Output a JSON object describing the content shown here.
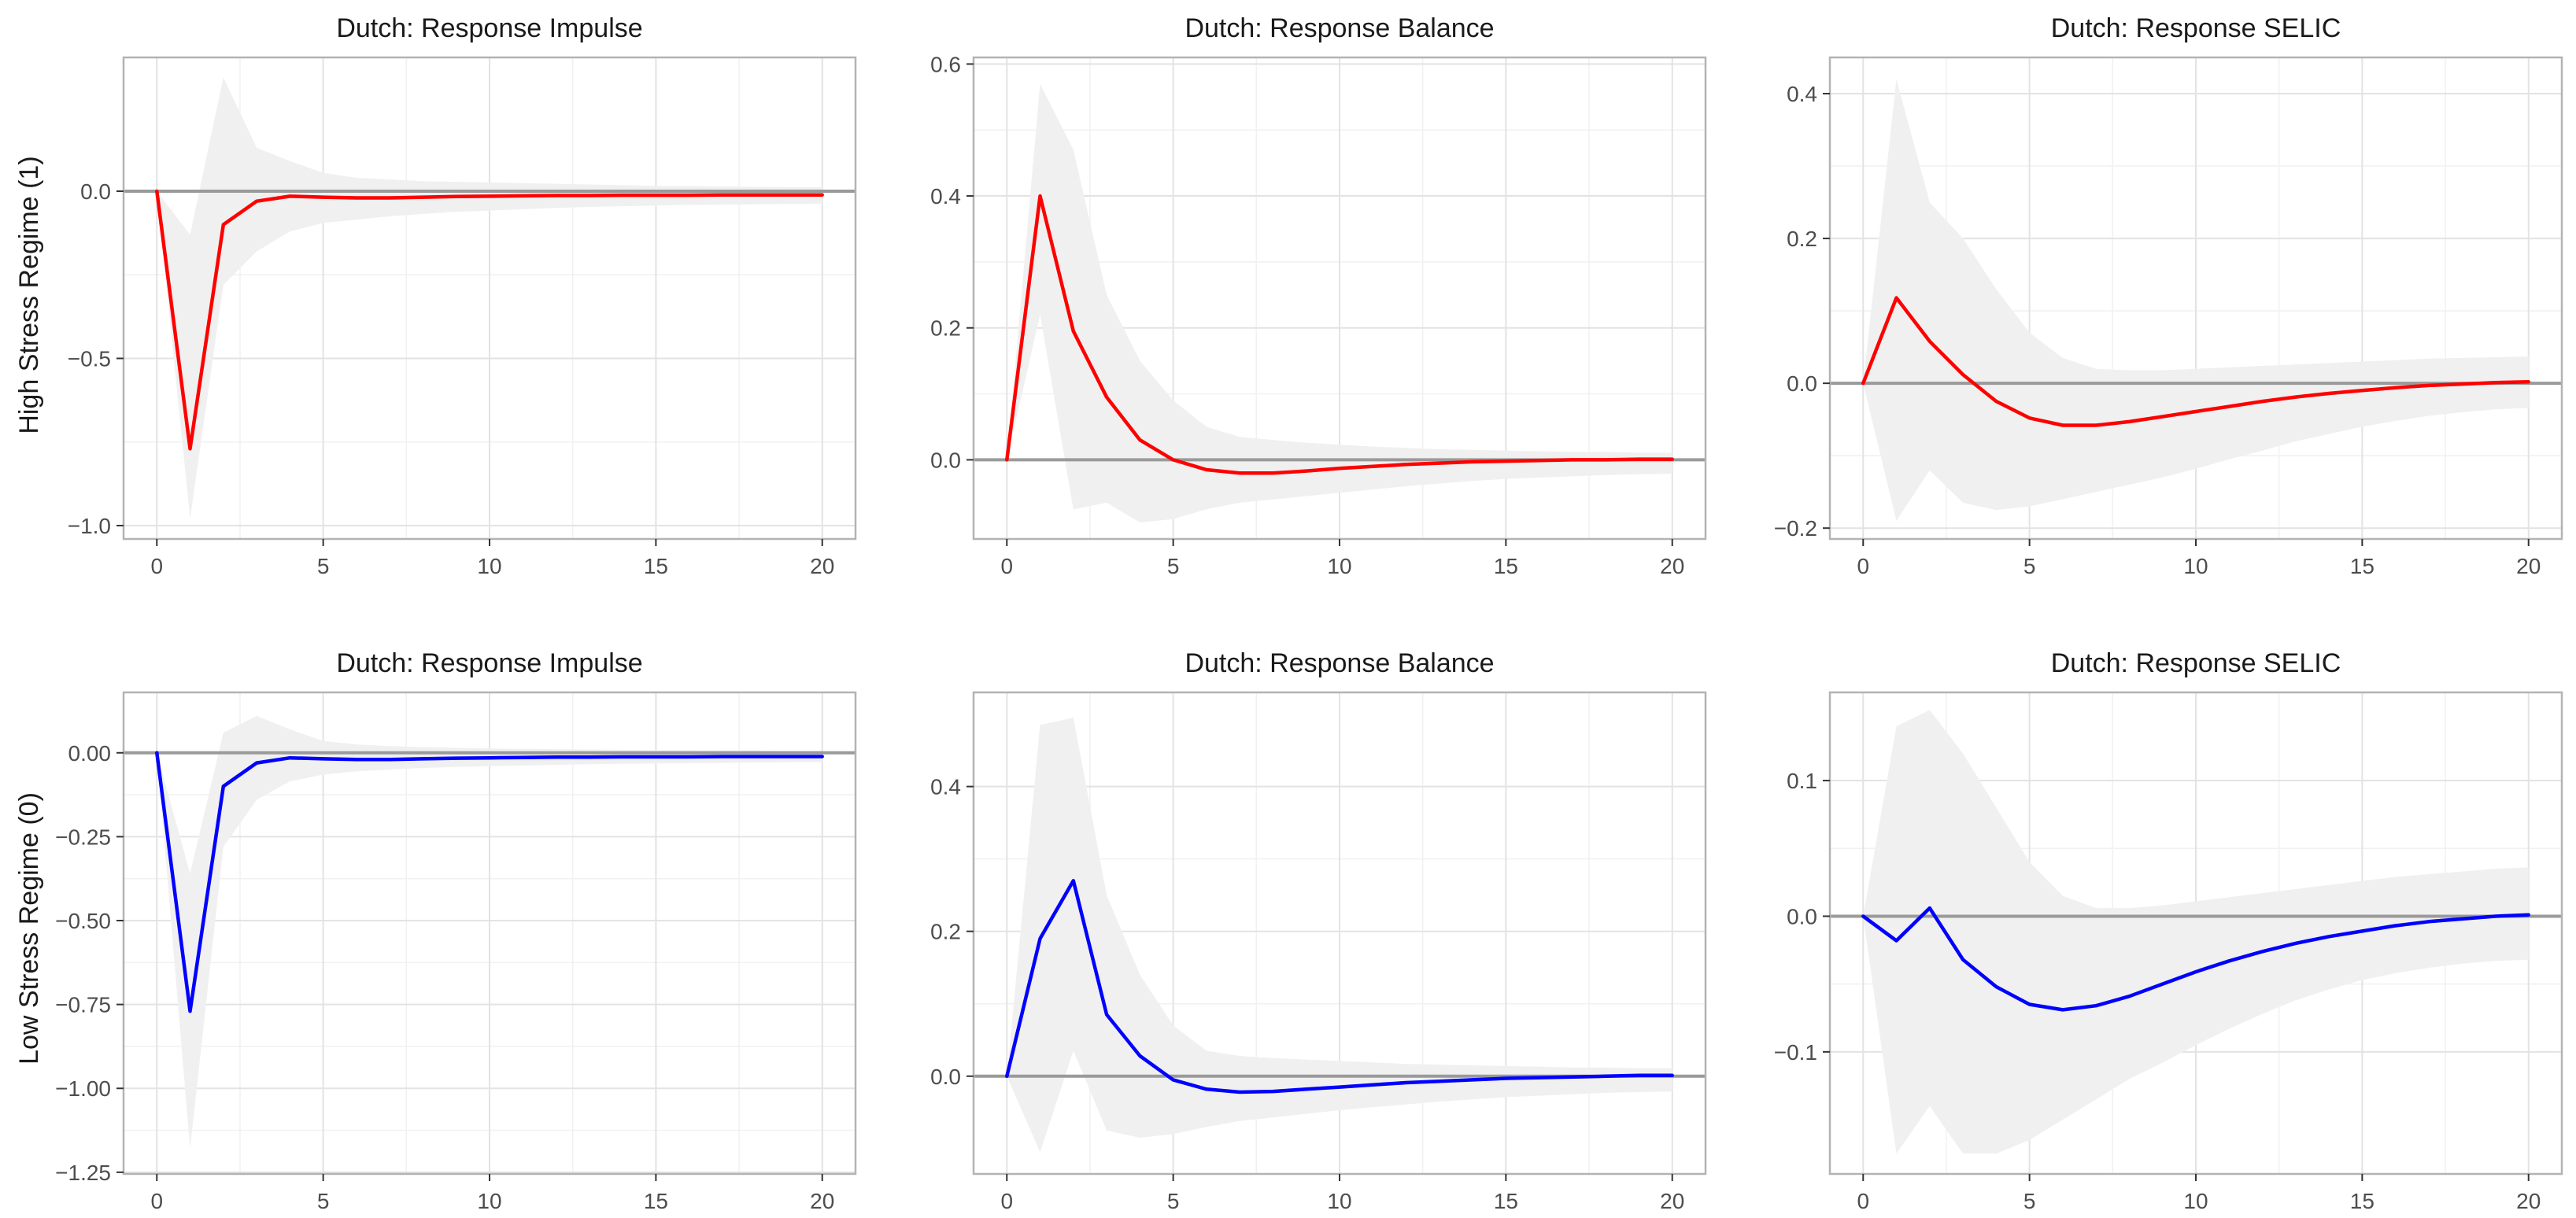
{
  "figure": {
    "row_labels": [
      "High Stress Regime (1)",
      "Low Stress Regime (0)"
    ]
  },
  "colors": {
    "high_line": "#ff0000",
    "low_line": "#0000ff",
    "band": "#f0f0f0",
    "zero_line": "#9a9a9a",
    "grid": "#e3e3e3",
    "frame": "#b3b3b3"
  },
  "chart_data": [
    {
      "type": "line",
      "title": "Dutch: Response Impulse",
      "regime": "High Stress Regime (1)",
      "xlim": [
        -1,
        21
      ],
      "ylim": [
        -1.04,
        0.4
      ],
      "xticks": [
        0,
        5,
        10,
        15,
        20
      ],
      "yticks": [
        -1.0,
        -0.5,
        0.0
      ],
      "ytick_labels": [
        "−1.0",
        "−0.5",
        "0.0"
      ],
      "x": [
        0,
        1,
        2,
        3,
        4,
        5,
        6,
        7,
        8,
        9,
        10,
        11,
        12,
        13,
        14,
        15,
        16,
        17,
        18,
        19,
        20
      ],
      "series": [
        {
          "name": "response",
          "color_key": "high_line",
          "values": [
            0,
            -0.77,
            -0.1,
            -0.03,
            -0.015,
            -0.018,
            -0.02,
            -0.02,
            -0.018,
            -0.016,
            -0.015,
            -0.014,
            -0.013,
            -0.013,
            -0.012,
            -0.012,
            -0.012,
            -0.011,
            -0.011,
            -0.011,
            -0.011
          ]
        },
        {
          "name": "upper",
          "values": [
            0,
            -0.13,
            0.34,
            0.13,
            0.09,
            0.055,
            0.04,
            0.035,
            0.03,
            0.028,
            0.026,
            0.024,
            0.022,
            0.02,
            0.018,
            0.016,
            0.015,
            0.014,
            0.013,
            0.012,
            0.012
          ]
        },
        {
          "name": "lower",
          "values": [
            0,
            -0.98,
            -0.28,
            -0.18,
            -0.12,
            -0.095,
            -0.085,
            -0.075,
            -0.068,
            -0.062,
            -0.058,
            -0.054,
            -0.05,
            -0.047,
            -0.045,
            -0.043,
            -0.041,
            -0.04,
            -0.039,
            -0.038,
            -0.037
          ]
        }
      ]
    },
    {
      "type": "line",
      "title": "Dutch: Response Balance",
      "regime": "High Stress Regime (1)",
      "xlim": [
        -1,
        21
      ],
      "ylim": [
        -0.12,
        0.61
      ],
      "xticks": [
        0,
        5,
        10,
        15,
        20
      ],
      "yticks": [
        0.0,
        0.2,
        0.4,
        0.6
      ],
      "ytick_labels": [
        "0.0",
        "0.2",
        "0.4",
        "0.6"
      ],
      "x": [
        0,
        1,
        2,
        3,
        4,
        5,
        6,
        7,
        8,
        9,
        10,
        11,
        12,
        13,
        14,
        15,
        16,
        17,
        18,
        19,
        20
      ],
      "series": [
        {
          "name": "response",
          "color_key": "high_line",
          "values": [
            0,
            0.4,
            0.195,
            0.095,
            0.03,
            0,
            -0.015,
            -0.02,
            -0.02,
            -0.017,
            -0.013,
            -0.01,
            -0.007,
            -0.005,
            -0.003,
            -0.002,
            -0.001,
            0,
            0,
            0.001,
            0.001
          ]
        },
        {
          "name": "upper",
          "values": [
            0,
            0.57,
            0.47,
            0.25,
            0.15,
            0.09,
            0.05,
            0.035,
            0.03,
            0.026,
            0.023,
            0.02,
            0.018,
            0.016,
            0.015,
            0.014,
            0.013,
            0.012,
            0.012,
            0.011,
            0.011
          ]
        },
        {
          "name": "lower",
          "values": [
            0,
            0.22,
            -0.075,
            -0.065,
            -0.095,
            -0.09,
            -0.075,
            -0.065,
            -0.06,
            -0.055,
            -0.05,
            -0.045,
            -0.04,
            -0.036,
            -0.032,
            -0.029,
            -0.027,
            -0.025,
            -0.023,
            -0.022,
            -0.021
          ]
        }
      ]
    },
    {
      "type": "line",
      "title": "Dutch: Response SELIC",
      "regime": "High Stress Regime (1)",
      "xlim": [
        -1,
        21
      ],
      "ylim": [
        -0.215,
        0.45
      ],
      "xticks": [
        0,
        5,
        10,
        15,
        20
      ],
      "yticks": [
        -0.2,
        0.0,
        0.2,
        0.4
      ],
      "ytick_labels": [
        "−0.2",
        "0.0",
        "0.2",
        "0.4"
      ],
      "x": [
        0,
        1,
        2,
        3,
        4,
        5,
        6,
        7,
        8,
        9,
        10,
        11,
        12,
        13,
        14,
        15,
        16,
        17,
        18,
        19,
        20
      ],
      "series": [
        {
          "name": "response",
          "color_key": "high_line",
          "values": [
            0,
            0.118,
            0.058,
            0.012,
            -0.025,
            -0.048,
            -0.058,
            -0.058,
            -0.053,
            -0.046,
            -0.039,
            -0.032,
            -0.025,
            -0.019,
            -0.014,
            -0.01,
            -0.006,
            -0.003,
            -0.001,
            0.001,
            0.002
          ]
        },
        {
          "name": "upper",
          "values": [
            0,
            0.42,
            0.25,
            0.2,
            0.13,
            0.07,
            0.035,
            0.02,
            0.018,
            0.018,
            0.02,
            0.022,
            0.024,
            0.026,
            0.028,
            0.03,
            0.032,
            0.034,
            0.035,
            0.036,
            0.037
          ]
        },
        {
          "name": "lower",
          "values": [
            0,
            -0.19,
            -0.12,
            -0.165,
            -0.175,
            -0.17,
            -0.16,
            -0.15,
            -0.14,
            -0.13,
            -0.118,
            -0.105,
            -0.093,
            -0.08,
            -0.07,
            -0.06,
            -0.052,
            -0.045,
            -0.04,
            -0.036,
            -0.034
          ]
        }
      ]
    },
    {
      "type": "line",
      "title": "Dutch: Response Impulse",
      "regime": "Low Stress Regime (0)",
      "xlim": [
        -1,
        21
      ],
      "ylim": [
        -1.255,
        0.18
      ],
      "xticks": [
        0,
        5,
        10,
        15,
        20
      ],
      "yticks": [
        -1.25,
        -1.0,
        -0.75,
        -0.5,
        -0.25,
        0.0
      ],
      "ytick_labels": [
        "−1.25",
        "−1.00",
        "−0.75",
        "−0.50",
        "−0.25",
        "0.00"
      ],
      "x": [
        0,
        1,
        2,
        3,
        4,
        5,
        6,
        7,
        8,
        9,
        10,
        11,
        12,
        13,
        14,
        15,
        16,
        17,
        18,
        19,
        20
      ],
      "series": [
        {
          "name": "response",
          "color_key": "low_line",
          "values": [
            0,
            -0.77,
            -0.1,
            -0.03,
            -0.015,
            -0.018,
            -0.02,
            -0.02,
            -0.018,
            -0.016,
            -0.015,
            -0.014,
            -0.013,
            -0.013,
            -0.012,
            -0.012,
            -0.012,
            -0.011,
            -0.011,
            -0.011,
            -0.011
          ]
        },
        {
          "name": "upper",
          "values": [
            0,
            -0.36,
            0.06,
            0.11,
            0.07,
            0.035,
            0.025,
            0.02,
            0.017,
            0.015,
            0.013,
            0.012,
            0.011,
            0.01,
            0.009,
            0.008,
            0.008,
            0.007,
            0.007,
            0.006,
            0.006
          ]
        },
        {
          "name": "lower",
          "values": [
            0,
            -1.18,
            -0.28,
            -0.14,
            -0.085,
            -0.065,
            -0.055,
            -0.05,
            -0.045,
            -0.042,
            -0.04,
            -0.038,
            -0.036,
            -0.034,
            -0.033,
            -0.032,
            -0.031,
            -0.03,
            -0.029,
            -0.028,
            -0.028
          ]
        }
      ]
    },
    {
      "type": "line",
      "title": "Dutch: Response Balance",
      "regime": "Low Stress Regime (0)",
      "xlim": [
        -1,
        21
      ],
      "ylim": [
        -0.135,
        0.53
      ],
      "xticks": [
        0,
        5,
        10,
        15,
        20
      ],
      "yticks": [
        0.0,
        0.2,
        0.4
      ],
      "ytick_labels": [
        "0.0",
        "0.2",
        "0.4"
      ],
      "x": [
        0,
        1,
        2,
        3,
        4,
        5,
        6,
        7,
        8,
        9,
        10,
        11,
        12,
        13,
        14,
        15,
        16,
        17,
        18,
        19,
        20
      ],
      "series": [
        {
          "name": "response",
          "color_key": "low_line",
          "values": [
            0,
            0.19,
            0.27,
            0.085,
            0.028,
            -0.005,
            -0.018,
            -0.022,
            -0.021,
            -0.018,
            -0.015,
            -0.012,
            -0.009,
            -0.007,
            -0.005,
            -0.003,
            -0.002,
            -0.001,
            0,
            0.001,
            0.001
          ]
        },
        {
          "name": "upper",
          "values": [
            0,
            0.485,
            0.495,
            0.25,
            0.14,
            0.07,
            0.035,
            0.028,
            0.025,
            0.023,
            0.021,
            0.019,
            0.017,
            0.016,
            0.015,
            0.014,
            0.013,
            0.012,
            0.012,
            0.011,
            0.011
          ]
        },
        {
          "name": "lower",
          "values": [
            0,
            -0.105,
            0.035,
            -0.075,
            -0.085,
            -0.08,
            -0.07,
            -0.062,
            -0.057,
            -0.052,
            -0.047,
            -0.043,
            -0.039,
            -0.035,
            -0.032,
            -0.029,
            -0.027,
            -0.025,
            -0.023,
            -0.022,
            -0.021
          ]
        }
      ]
    },
    {
      "type": "line",
      "title": "Dutch: Response SELIC",
      "regime": "Low Stress Regime (0)",
      "xlim": [
        -1,
        21
      ],
      "ylim": [
        -0.19,
        0.165
      ],
      "xticks": [
        0,
        5,
        10,
        15,
        20
      ],
      "yticks": [
        -0.1,
        0.0,
        0.1
      ],
      "ytick_labels": [
        "−0.1",
        "0.0",
        "0.1"
      ],
      "x": [
        0,
        1,
        2,
        3,
        4,
        5,
        6,
        7,
        8,
        9,
        10,
        11,
        12,
        13,
        14,
        15,
        16,
        17,
        18,
        19,
        20
      ],
      "series": [
        {
          "name": "response",
          "color_key": "low_line",
          "values": [
            0,
            -0.018,
            0.006,
            -0.032,
            -0.052,
            -0.065,
            -0.069,
            -0.066,
            -0.059,
            -0.05,
            -0.041,
            -0.033,
            -0.026,
            -0.02,
            -0.015,
            -0.011,
            -0.007,
            -0.004,
            -0.002,
            0,
            0.001
          ]
        },
        {
          "name": "upper",
          "values": [
            0,
            0.14,
            0.152,
            0.12,
            0.08,
            0.04,
            0.015,
            0.006,
            0.006,
            0.008,
            0.011,
            0.014,
            0.017,
            0.02,
            0.023,
            0.026,
            0.029,
            0.031,
            0.033,
            0.035,
            0.036
          ]
        },
        {
          "name": "lower",
          "values": [
            0,
            -0.175,
            -0.14,
            -0.175,
            -0.175,
            -0.165,
            -0.15,
            -0.135,
            -0.12,
            -0.108,
            -0.095,
            -0.083,
            -0.072,
            -0.062,
            -0.054,
            -0.047,
            -0.042,
            -0.038,
            -0.035,
            -0.033,
            -0.032
          ]
        }
      ]
    }
  ]
}
